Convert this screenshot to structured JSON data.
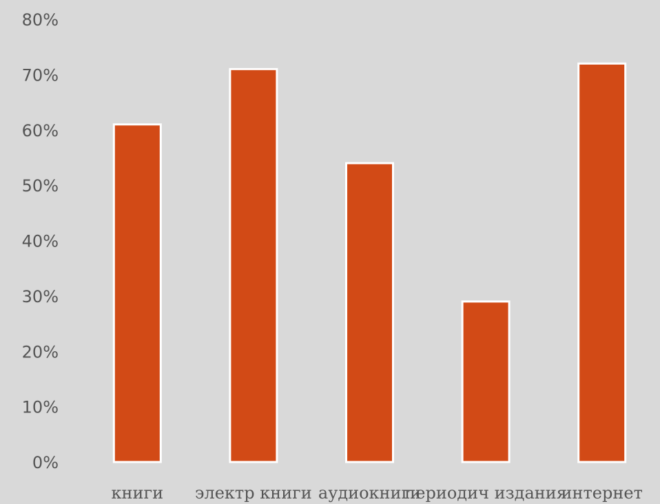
{
  "chart_data": {
    "type": "bar",
    "categories": [
      "книги",
      "электр книги",
      "аудиокниги",
      "периодич издания",
      "интернет"
    ],
    "values": [
      61,
      71,
      54,
      29,
      72
    ],
    "y_ticks": [
      "0%",
      "10%",
      "20%",
      "30%",
      "40%",
      "50%",
      "60%",
      "70%",
      "80%"
    ],
    "ylim": [
      0,
      80
    ],
    "grid": false,
    "legend": "none",
    "colors": {
      "background": "#d9d9d9",
      "bar_fill": "#d24a16",
      "bar_outline": "#ffffff",
      "text": "#555555"
    }
  }
}
